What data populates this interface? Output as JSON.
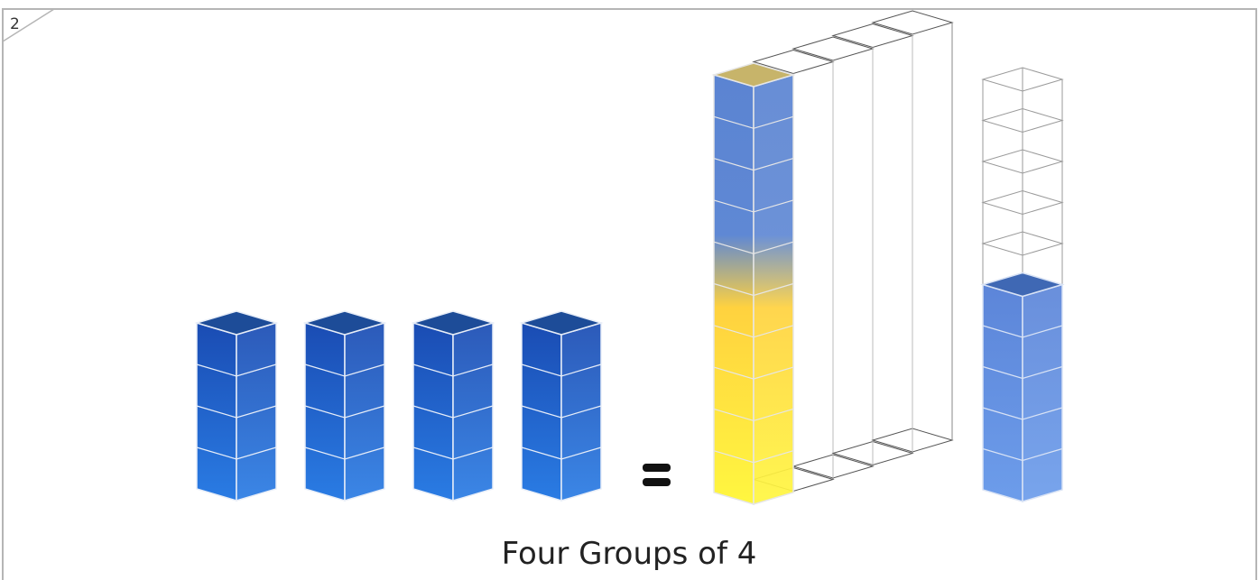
{
  "page_number": "2",
  "caption": "Four Groups of 4"
}
